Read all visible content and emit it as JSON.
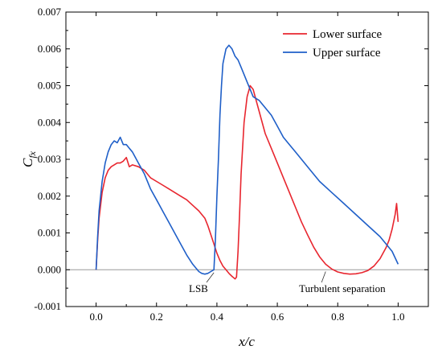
{
  "chart_data": {
    "type": "line",
    "title": "",
    "xlabel": "x/c",
    "ylabel_main": "C",
    "ylabel_sub": "fx",
    "xlim": [
      -0.1,
      1.1
    ],
    "ylim": [
      -0.001,
      0.007
    ],
    "x_ticks": [
      0.0,
      0.2,
      0.4,
      0.6,
      0.8,
      1.0
    ],
    "x_tick_labels": [
      "0.0",
      "0.2",
      "0.4",
      "0.6",
      "0.8",
      "1.0"
    ],
    "y_ticks": [
      -0.001,
      0.0,
      0.001,
      0.002,
      0.003,
      0.004,
      0.005,
      0.006,
      0.007
    ],
    "y_tick_labels": [
      "-0.001",
      "0.000",
      "0.001",
      "0.002",
      "0.003",
      "0.004",
      "0.005",
      "0.006",
      "0.007"
    ],
    "grid": false,
    "zero_line": true,
    "legend_position": "top-right",
    "series": [
      {
        "name": "Lower surface",
        "color": "#e8262f",
        "x": [
          0.0,
          0.005,
          0.01,
          0.02,
          0.03,
          0.04,
          0.05,
          0.06,
          0.07,
          0.08,
          0.09,
          0.1,
          0.11,
          0.12,
          0.14,
          0.16,
          0.18,
          0.2,
          0.22,
          0.24,
          0.26,
          0.28,
          0.3,
          0.32,
          0.34,
          0.36,
          0.37,
          0.38,
          0.39,
          0.4,
          0.41,
          0.42,
          0.43,
          0.44,
          0.45,
          0.46,
          0.465,
          0.47,
          0.475,
          0.48,
          0.49,
          0.5,
          0.51,
          0.52,
          0.54,
          0.56,
          0.58,
          0.6,
          0.62,
          0.64,
          0.66,
          0.68,
          0.7,
          0.72,
          0.74,
          0.76,
          0.78,
          0.8,
          0.82,
          0.84,
          0.86,
          0.88,
          0.9,
          0.92,
          0.94,
          0.96,
          0.97,
          0.98,
          0.99,
          0.995,
          1.0
        ],
        "y": [
          0.0,
          0.0008,
          0.0014,
          0.0021,
          0.0025,
          0.0027,
          0.0028,
          0.00285,
          0.0029,
          0.0029,
          0.00295,
          0.00305,
          0.0028,
          0.00285,
          0.0028,
          0.0027,
          0.0025,
          0.0024,
          0.0023,
          0.0022,
          0.0021,
          0.002,
          0.0019,
          0.00175,
          0.0016,
          0.0014,
          0.0012,
          0.00095,
          0.0007,
          0.00045,
          0.00025,
          0.0001,
          0.0,
          -0.0001,
          -0.00018,
          -0.00025,
          -0.0002,
          0.0005,
          0.0015,
          0.0026,
          0.004,
          0.0047,
          0.005,
          0.0049,
          0.0043,
          0.0037,
          0.0033,
          0.0029,
          0.0025,
          0.0021,
          0.0017,
          0.0013,
          0.00095,
          0.00062,
          0.00035,
          0.00015,
          2e-05,
          -6e-05,
          -0.0001,
          -0.00012,
          -0.00011,
          -8e-05,
          -2e-05,
          0.0001,
          0.0003,
          0.0006,
          0.0008,
          0.0011,
          0.0015,
          0.0018,
          0.0013
        ]
      },
      {
        "name": "Upper surface",
        "color": "#1f5fc8",
        "x": [
          0.0,
          0.005,
          0.01,
          0.02,
          0.03,
          0.04,
          0.05,
          0.06,
          0.07,
          0.08,
          0.09,
          0.1,
          0.11,
          0.12,
          0.14,
          0.16,
          0.18,
          0.2,
          0.22,
          0.24,
          0.26,
          0.28,
          0.3,
          0.32,
          0.34,
          0.35,
          0.36,
          0.37,
          0.38,
          0.39,
          0.395,
          0.4,
          0.405,
          0.41,
          0.415,
          0.42,
          0.43,
          0.44,
          0.45,
          0.46,
          0.47,
          0.48,
          0.5,
          0.52,
          0.54,
          0.56,
          0.58,
          0.6,
          0.62,
          0.64,
          0.66,
          0.7,
          0.74,
          0.78,
          0.82,
          0.86,
          0.9,
          0.94,
          0.96,
          0.98,
          1.0
        ],
        "y": [
          0.0,
          0.0009,
          0.0016,
          0.0024,
          0.0029,
          0.0032,
          0.0034,
          0.0035,
          0.00345,
          0.0036,
          0.0034,
          0.0034,
          0.0033,
          0.0032,
          0.0029,
          0.0026,
          0.0022,
          0.0019,
          0.0016,
          0.0013,
          0.001,
          0.0007,
          0.0004,
          0.00015,
          -5e-05,
          -0.0001,
          -0.00012,
          -0.0001,
          -5e-05,
          0.0,
          0.0008,
          0.002,
          0.003,
          0.0042,
          0.005,
          0.0056,
          0.006,
          0.0061,
          0.006,
          0.0058,
          0.0057,
          0.0055,
          0.0051,
          0.0047,
          0.0046,
          0.0044,
          0.0042,
          0.0039,
          0.0036,
          0.0034,
          0.0032,
          0.0028,
          0.0024,
          0.0021,
          0.0018,
          0.0015,
          0.0012,
          0.0009,
          0.0007,
          0.0005,
          0.00015
        ]
      }
    ],
    "annotations": [
      {
        "text": "LSB",
        "point_x": 0.39,
        "point_y": -8e-05,
        "label_x": 0.355,
        "label_y": -0.00052
      },
      {
        "text": "Turbulent separation",
        "point_x": 0.76,
        "point_y": -5e-05,
        "label_x": 0.72,
        "label_y": -0.00052
      }
    ]
  }
}
